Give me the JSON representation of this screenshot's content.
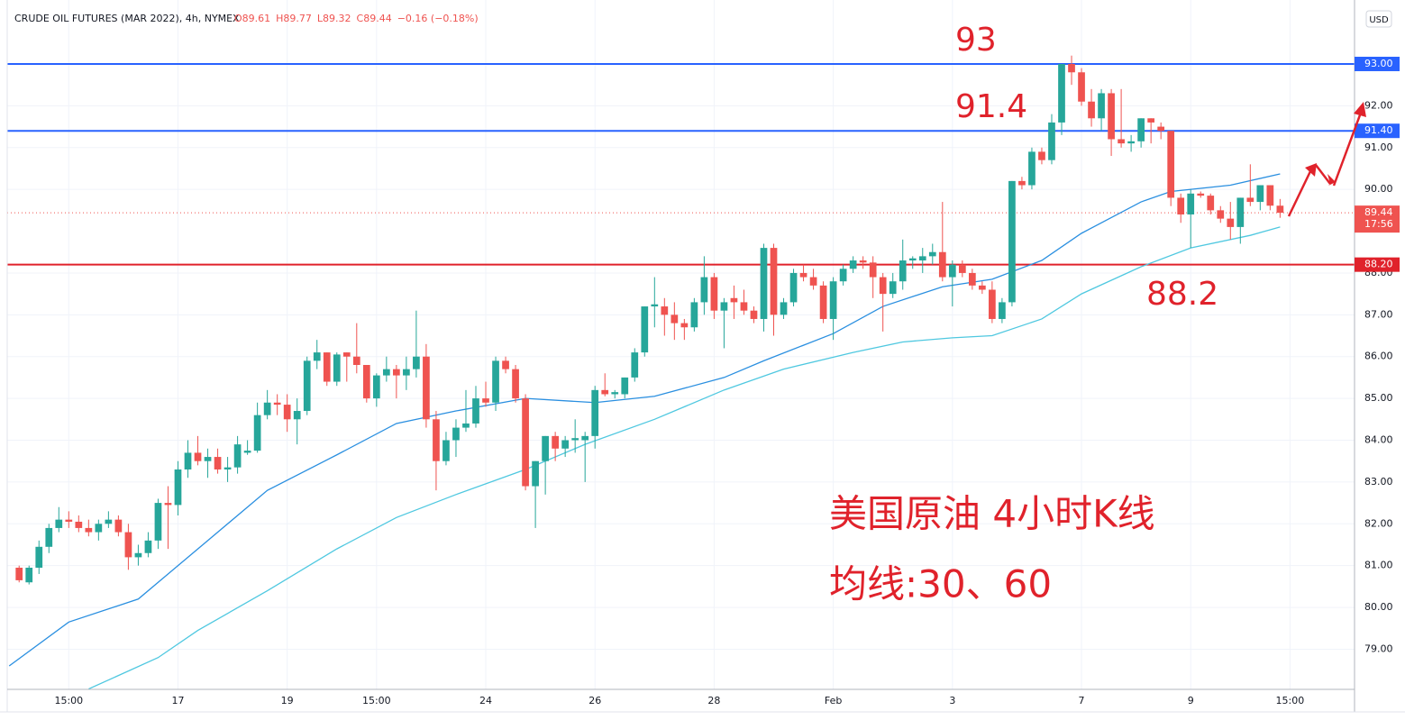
{
  "chart_data": {
    "type": "candlestick",
    "title": "CRUDE OIL FUTURES (MAR 2022), 4h, NYMEX",
    "legend_values": [
      "O89.61",
      "H89.77",
      "L89.32",
      "C89.44",
      "−0.16 (−0.18%)"
    ],
    "currency": "USD",
    "up_color": "#26a69a",
    "down_color": "#ef5350",
    "xlim": [
      -1.2,
      134.5
    ],
    "ylim": [
      78.04,
      94.53
    ],
    "xticks": [
      {
        "value": 5,
        "label": "15:00"
      },
      {
        "value": 16,
        "label": "17"
      },
      {
        "value": 27,
        "label": "19"
      },
      {
        "value": 36,
        "label": "15:00"
      },
      {
        "value": 47,
        "label": "24"
      },
      {
        "value": 58,
        "label": "26"
      },
      {
        "value": 70,
        "label": "28"
      },
      {
        "value": 82,
        "label": "Feb"
      },
      {
        "value": 94,
        "label": "3"
      },
      {
        "value": 107,
        "label": "7"
      },
      {
        "value": 118,
        "label": "9"
      },
      {
        "value": 128,
        "label": "15:00"
      }
    ],
    "yticks": [
      {
        "value": 79,
        "label": "79.00"
      },
      {
        "value": 80,
        "label": "80.00"
      },
      {
        "value": 81,
        "label": "81.00"
      },
      {
        "value": 82,
        "label": "82.00"
      },
      {
        "value": 83,
        "label": "83.00"
      },
      {
        "value": 84,
        "label": "84.00"
      },
      {
        "value": 85,
        "label": "85.00"
      },
      {
        "value": 86,
        "label": "86.00"
      },
      {
        "value": 87,
        "label": "87.00"
      },
      {
        "value": 88,
        "label": "88.00"
      },
      {
        "value": 90,
        "label": "90.00"
      },
      {
        "value": 91,
        "label": "91.00"
      },
      {
        "value": 92,
        "label": "92.00"
      }
    ],
    "grid": true,
    "candles": [
      [
        80.95,
        81.0,
        80.6,
        80.65
      ],
      [
        80.6,
        81.0,
        80.55,
        80.95
      ],
      [
        80.95,
        81.6,
        80.8,
        81.45
      ],
      [
        81.45,
        82.0,
        81.3,
        81.9
      ],
      [
        81.9,
        82.4,
        81.8,
        82.1
      ],
      [
        82.1,
        82.3,
        81.9,
        82.05
      ],
      [
        82.05,
        82.2,
        81.8,
        81.9
      ],
      [
        81.9,
        82.1,
        81.7,
        81.8
      ],
      [
        81.8,
        82.1,
        81.6,
        82.0
      ],
      [
        82.0,
        82.3,
        81.9,
        82.1
      ],
      [
        82.1,
        82.2,
        81.7,
        81.8
      ],
      [
        81.8,
        82.0,
        80.9,
        81.2
      ],
      [
        81.2,
        81.5,
        81.0,
        81.3
      ],
      [
        81.3,
        81.8,
        81.2,
        81.6
      ],
      [
        81.6,
        82.6,
        81.4,
        82.5
      ],
      [
        82.5,
        82.9,
        81.4,
        82.45
      ],
      [
        82.45,
        83.5,
        82.2,
        83.3
      ],
      [
        83.3,
        84.0,
        83.1,
        83.7
      ],
      [
        83.7,
        84.1,
        83.4,
        83.5
      ],
      [
        83.5,
        83.8,
        83.1,
        83.6
      ],
      [
        83.6,
        83.8,
        83.2,
        83.3
      ],
      [
        83.3,
        83.6,
        83.0,
        83.35
      ],
      [
        83.35,
        84.1,
        83.2,
        83.9
      ],
      [
        83.7,
        84.0,
        83.65,
        83.75
      ],
      [
        83.75,
        84.9,
        83.7,
        84.6
      ],
      [
        84.6,
        85.2,
        84.5,
        84.9
      ],
      [
        84.9,
        85.1,
        84.6,
        84.85
      ],
      [
        84.85,
        85.1,
        84.2,
        84.5
      ],
      [
        84.5,
        85.0,
        83.9,
        84.7
      ],
      [
        84.7,
        86.0,
        84.6,
        85.9
      ],
      [
        85.9,
        86.4,
        85.7,
        86.1
      ],
      [
        86.1,
        86.1,
        85.3,
        85.4
      ],
      [
        85.4,
        86.1,
        85.3,
        86.05
      ],
      [
        86.1,
        86.1,
        85.4,
        86.0
      ],
      [
        86.0,
        86.8,
        85.6,
        85.8
      ],
      [
        85.8,
        85.8,
        84.9,
        85.0
      ],
      [
        85.0,
        85.6,
        84.8,
        85.55
      ],
      [
        85.55,
        86.0,
        85.4,
        85.7
      ],
      [
        85.7,
        85.8,
        85.0,
        85.55
      ],
      [
        85.55,
        86.0,
        85.2,
        85.7
      ],
      [
        85.7,
        87.1,
        85.5,
        86.0
      ],
      [
        86.0,
        86.3,
        84.3,
        84.5
      ],
      [
        84.5,
        84.7,
        82.8,
        83.5
      ],
      [
        83.5,
        84.2,
        83.4,
        84.0
      ],
      [
        84.0,
        84.5,
        83.6,
        84.3
      ],
      [
        84.3,
        85.2,
        84.2,
        84.4
      ],
      [
        84.4,
        85.3,
        84.3,
        85.0
      ],
      [
        85.0,
        85.4,
        84.8,
        84.9
      ],
      [
        84.9,
        86.0,
        84.7,
        85.9
      ],
      [
        85.9,
        86.0,
        85.6,
        85.7
      ],
      [
        85.7,
        85.8,
        84.9,
        85.0
      ],
      [
        85.0,
        85.1,
        82.8,
        82.9
      ],
      [
        82.9,
        83.5,
        81.9,
        83.5
      ],
      [
        83.5,
        84.1,
        82.7,
        84.1
      ],
      [
        84.1,
        84.2,
        83.5,
        83.8
      ],
      [
        83.8,
        84.1,
        83.6,
        84.0
      ],
      [
        84.0,
        84.5,
        83.7,
        84.05
      ],
      [
        84.0,
        84.2,
        83.0,
        84.1
      ],
      [
        84.1,
        85.3,
        83.8,
        85.2
      ],
      [
        85.2,
        85.6,
        85.05,
        85.1
      ],
      [
        85.1,
        85.2,
        85.0,
        85.15
      ],
      [
        85.1,
        85.5,
        85.0,
        85.5
      ],
      [
        85.5,
        86.2,
        85.4,
        86.1
      ],
      [
        86.1,
        87.2,
        86.0,
        87.2
      ],
      [
        87.2,
        87.9,
        86.7,
        87.25
      ],
      [
        87.2,
        87.4,
        86.5,
        87.0
      ],
      [
        87.0,
        87.3,
        86.4,
        86.8
      ],
      [
        86.8,
        86.9,
        86.4,
        86.7
      ],
      [
        86.7,
        87.4,
        86.6,
        87.3
      ],
      [
        87.3,
        88.4,
        87.0,
        87.9
      ],
      [
        87.9,
        88.0,
        86.9,
        87.1
      ],
      [
        87.1,
        87.4,
        86.2,
        87.3
      ],
      [
        87.4,
        87.7,
        86.9,
        87.3
      ],
      [
        87.3,
        87.6,
        87.0,
        87.1
      ],
      [
        87.1,
        87.2,
        86.8,
        86.9
      ],
      [
        86.9,
        88.7,
        86.6,
        88.6
      ],
      [
        88.6,
        88.7,
        86.5,
        87.0
      ],
      [
        87.0,
        87.4,
        86.9,
        87.3
      ],
      [
        87.3,
        88.1,
        87.2,
        88.0
      ],
      [
        88.0,
        88.2,
        87.8,
        87.9
      ],
      [
        87.9,
        88.1,
        87.6,
        87.7
      ],
      [
        87.7,
        87.8,
        86.8,
        86.9
      ],
      [
        86.9,
        87.9,
        86.4,
        87.8
      ],
      [
        87.8,
        88.2,
        87.7,
        88.1
      ],
      [
        88.1,
        88.4,
        88.0,
        88.3
      ],
      [
        88.3,
        88.4,
        88.1,
        88.25
      ],
      [
        88.25,
        88.4,
        87.4,
        87.9
      ],
      [
        87.9,
        88.0,
        86.6,
        87.5
      ],
      [
        87.5,
        88.0,
        87.4,
        87.8
      ],
      [
        87.8,
        88.8,
        87.6,
        88.3
      ],
      [
        88.3,
        88.4,
        88.1,
        88.35
      ],
      [
        88.3,
        88.6,
        88.0,
        88.4
      ],
      [
        88.4,
        88.7,
        88.2,
        88.5
      ],
      [
        88.5,
        89.7,
        87.8,
        87.9
      ],
      [
        87.9,
        88.3,
        87.2,
        88.2
      ],
      [
        88.2,
        88.3,
        87.9,
        88.0
      ],
      [
        88.0,
        88.1,
        87.6,
        87.7
      ],
      [
        87.7,
        87.8,
        87.5,
        87.6
      ],
      [
        87.6,
        87.8,
        86.8,
        86.9
      ],
      [
        86.9,
        87.4,
        86.8,
        87.3
      ],
      [
        87.3,
        90.2,
        87.2,
        90.2
      ],
      [
        90.2,
        90.3,
        90.0,
        90.1
      ],
      [
        90.1,
        91.0,
        90.0,
        90.9
      ],
      [
        90.9,
        91.0,
        90.6,
        90.7
      ],
      [
        90.7,
        91.8,
        90.6,
        91.6
      ],
      [
        91.6,
        93.0,
        91.3,
        93.0
      ],
      [
        93.0,
        93.2,
        92.5,
        92.8
      ],
      [
        92.8,
        92.9,
        92.0,
        92.1
      ],
      [
        92.1,
        92.4,
        91.5,
        91.7
      ],
      [
        91.7,
        92.4,
        91.4,
        92.3
      ],
      [
        92.3,
        92.4,
        90.8,
        91.2
      ],
      [
        91.2,
        92.4,
        91.0,
        91.1
      ],
      [
        91.1,
        91.3,
        90.9,
        91.15
      ],
      [
        91.15,
        91.7,
        91.0,
        91.7
      ],
      [
        91.7,
        91.7,
        91.1,
        91.6
      ],
      [
        91.5,
        91.6,
        91.2,
        91.4
      ],
      [
        91.4,
        91.4,
        89.6,
        89.8
      ],
      [
        89.8,
        89.9,
        89.2,
        89.4
      ],
      [
        89.4,
        90.0,
        88.6,
        89.9
      ],
      [
        89.9,
        89.95,
        89.8,
        89.85
      ],
      [
        89.85,
        89.9,
        89.4,
        89.5
      ],
      [
        89.5,
        89.6,
        89.2,
        89.3
      ],
      [
        89.3,
        89.7,
        88.8,
        89.1
      ],
      [
        89.1,
        89.8,
        88.7,
        89.8
      ],
      [
        89.8,
        90.6,
        89.6,
        89.7
      ],
      [
        89.7,
        90.1,
        89.5,
        90.1
      ],
      [
        90.1,
        90.1,
        89.5,
        89.61
      ],
      [
        89.61,
        89.77,
        89.32,
        89.44
      ]
    ],
    "series": [
      {
        "name": "MA30",
        "color": "#2a8fe0",
        "x": [
          -1,
          5,
          12,
          19,
          25,
          32,
          38,
          44,
          51,
          58,
          64,
          71,
          75,
          82,
          87,
          93,
          98,
          103,
          107,
          113,
          116,
          122,
          127
        ],
        "values": [
          78.6,
          79.65,
          80.2,
          81.6,
          82.8,
          83.65,
          84.4,
          84.7,
          85.0,
          84.9,
          85.05,
          85.5,
          85.9,
          86.55,
          87.2,
          87.67,
          87.85,
          88.3,
          88.95,
          89.7,
          89.95,
          90.1,
          90.37
        ]
      },
      {
        "name": "MA60",
        "color": "#4fc8e0",
        "x": [
          7,
          14,
          18,
          25,
          32,
          38,
          44,
          51,
          57,
          64,
          71,
          77,
          84,
          89,
          94,
          98,
          103,
          107,
          113,
          118,
          124,
          127
        ],
        "values": [
          78.05,
          78.8,
          79.45,
          80.4,
          81.4,
          82.15,
          82.7,
          83.3,
          83.9,
          84.5,
          85.2,
          85.7,
          86.1,
          86.35,
          86.45,
          86.5,
          86.9,
          87.5,
          88.15,
          88.6,
          88.9,
          89.1
        ]
      }
    ],
    "levels": [
      {
        "value": 93,
        "label": "93.00",
        "color": "#2962ff"
      },
      {
        "value": 91.4,
        "label": "91.40",
        "color": "#2962ff"
      },
      {
        "value": 88.2,
        "label": "88.20",
        "color": "#e0222b"
      }
    ],
    "last_price": {
      "value": 89.44,
      "label": "89.44",
      "countdown": "17:56",
      "color": "#ef5350"
    },
    "annotations": [
      "93",
      "91.4",
      "88.2",
      "美国原油 4小时K线",
      "均线:30、60"
    ]
  }
}
